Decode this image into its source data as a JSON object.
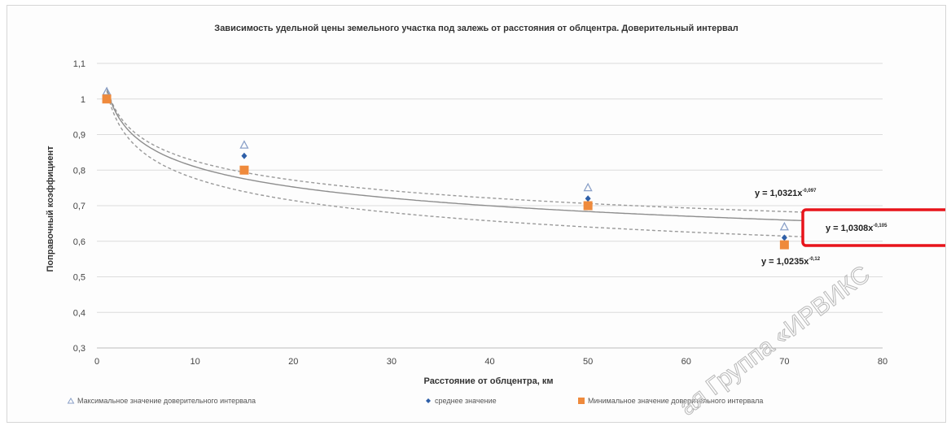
{
  "chart_data": {
    "type": "scatter",
    "title": "Зависимость удельной цены земельного участка под залежь от расстояния от облцентра.  Доверительный интервал",
    "xlabel": "Расстояние от облцентра, км",
    "ylabel": "Поправочный коэффициент",
    "xlim": [
      0,
      80
    ],
    "ylim": [
      0.3,
      1.1
    ],
    "xticks": [
      "0",
      "10",
      "20",
      "30",
      "40",
      "50",
      "60",
      "70",
      "80"
    ],
    "yticks": [
      "0,3",
      "0,4",
      "0,5",
      "0,6",
      "0,7",
      "0,8",
      "0,9",
      "1",
      "1,1"
    ],
    "grid": true,
    "legend_position": "bottom",
    "series": [
      {
        "name": "Максимальное значение доверительного интервала",
        "marker": "triangle",
        "color": "#8aa0c8",
        "x": [
          1,
          15,
          50,
          70
        ],
        "y": [
          1.02,
          0.87,
          0.75,
          0.64
        ]
      },
      {
        "name": "среднее значение",
        "marker": "diamond",
        "color": "#2e5fa8",
        "x": [
          1,
          15,
          50,
          70
        ],
        "y": [
          1.0,
          0.84,
          0.72,
          0.61
        ]
      },
      {
        "name": "Минимальное значение доверительного интервала",
        "marker": "square",
        "color": "#ef8a3c",
        "x": [
          1,
          15,
          50,
          70
        ],
        "y": [
          1.0,
          0.8,
          0.7,
          0.59
        ]
      }
    ],
    "trendlines": [
      {
        "coef": 1.0321,
        "exp": -0.097,
        "style": "dashed",
        "label": "y = 1,0321x",
        "label_sup": "-0,097"
      },
      {
        "coef": 1.0308,
        "exp": -0.105,
        "style": "solid",
        "label": "y = 1,0308x",
        "label_sup": "-0,105"
      },
      {
        "coef": 1.0235,
        "exp": -0.12,
        "style": "dashed",
        "label": "y = 1,0235x",
        "label_sup": "-0,12"
      }
    ],
    "highlight": {
      "color": "#e8141b"
    }
  },
  "watermark": "ая Группа «ИРВИКС"
}
